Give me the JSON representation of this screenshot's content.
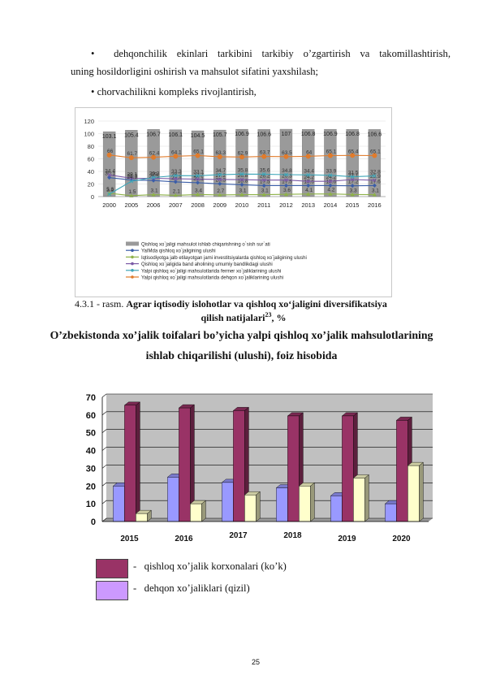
{
  "text": {
    "bullet1_line1": "dehqonchilik ekinlari tarkibini tarkibiy o’zgartirish va takomillashtirish,",
    "bullet1_line2": "uning hosildorligini oshirish va mahsulot sifatini yaxshilash;",
    "bullet2": "chorvachilikni kompleks rivojlantirish,",
    "bullet_glyph": "•",
    "fig1_caption_prefix": "4.3.1 - rasm.",
    "fig1_caption_bold": "Agrar iqtisodiy islohotlar va qishloq xo‘jaligini diversifikatsiya",
    "fig1_caption_line2": "qilish natijalari",
    "fig1_caption_sup": "23",
    "fig1_caption_suffix": ", %",
    "chart2_title_line1": "O’zbekistonda xo’jalik toifalari bo’yicha yalpi qishloq xo’jalik mahsulotlarining",
    "chart2_title_line2": "ishlab chiqarilishi (ulushi), foiz hisobida",
    "page_number": "25"
  },
  "chart_data": [
    {
      "type": "bar",
      "categories": [
        "2000",
        "2005",
        "2006",
        "2007",
        "2008",
        "2009",
        "2010",
        "2011",
        "2012",
        "2013",
        "2014",
        "2015",
        "2016"
      ],
      "ylim": [
        0,
        120
      ],
      "yticks": [
        0,
        20,
        40,
        60,
        80,
        100,
        120
      ],
      "bar_series": {
        "name": "Qishloq xo`jaligi mahsulot ishlab chiqarishning o`sish sur`ati",
        "values": [
          103.1,
          105.4,
          106.7,
          106.1,
          104.5,
          105.7,
          106.9,
          106.6,
          107,
          106.8,
          106.9,
          106.8,
          106.6
        ],
        "color": "#9a9a9a"
      },
      "line_series": [
        {
          "name": "YaIMda qishloq xo`jaligining ulushi",
          "color": "#3a5da8",
          "marker": "diamond",
          "values": [
            30.1,
            26.3,
            25.5,
            23.4,
            22.1,
            20.3,
            18.8,
            17.5,
            17.5,
            17.6,
            17.6,
            17.2,
            17.6
          ]
        },
        {
          "name": "Iqtisodiyotga jalb etilayotgan jami investitsiyalarda qishloq xo`jaligining ulushi",
          "color": "#8fb24a",
          "marker": "triangle",
          "values": [
            5.3,
            1.5,
            3.1,
            2.1,
            3.4,
            2.7,
            3.1,
            3.1,
            3.6,
            4.1,
            4.2,
            3.3,
            3.1
          ]
        },
        {
          "name": "Qishloq xo`jaligida band aholining umumiy bandlikdagi ulushi",
          "color": "#7b5aa6",
          "marker": "x",
          "values": [
            34.4,
            29.1,
            29,
            28.2,
            27.7,
            27.2,
            26.8,
            26.2,
            26.3,
            24.2,
            24.2,
            27.1,
            25.9
          ]
        },
        {
          "name": "Yalpi qishloq xo`jaligi mahsulotlarida fermer xo`jaliklarining ulushi",
          "color": "#3fa6b8",
          "marker": "x",
          "values": [
            3.9,
            24.3,
            30.3,
            33.3,
            33.1,
            34.7,
            35.8,
            35.6,
            34.8,
            34.4,
            33.9,
            31.5,
            32.8
          ]
        },
        {
          "name": "Yalpi qishloq xo`jaligi mahsulotlarida dehqon xo`jaliklarining ulushi",
          "color": "#e07b2c",
          "marker": "circle",
          "values": [
            66,
            61.7,
            62.4,
            64.1,
            65.1,
            63.3,
            62.9,
            63.7,
            63.5,
            64,
            65.1,
            65.4,
            65.1
          ]
        }
      ]
    },
    {
      "type": "bar",
      "title": "O’zbekistonda xo’jalik toifalari bo’yicha yalpi qishloq xo’jalik mahsulotlarining ishlab chiqarilishi (ulushi), foiz hisobida",
      "categories": [
        "2015",
        "2016",
        "2017",
        "2018",
        "2019",
        "2020"
      ],
      "ylim": [
        0,
        70
      ],
      "yticks": [
        0,
        10,
        20,
        30,
        40,
        50,
        60,
        70
      ],
      "series": [
        {
          "values": [
            20,
            25,
            22,
            19,
            14.5,
            10
          ],
          "color": "#9999ff"
        },
        {
          "name": "qishloq xo’jalik korxonalari (ko’k)",
          "values": [
            65.5,
            64,
            62.5,
            59.5,
            59.5,
            57
          ],
          "color": "#993366"
        },
        {
          "values": [
            4.5,
            10,
            15,
            20,
            24.5,
            31.5
          ],
          "color": "#ffffcc"
        }
      ],
      "legend": [
        {
          "label": "qishloq xo’jalik korxonalari (ko’k)",
          "dash": "-",
          "color": "#993366"
        },
        {
          "label": "dehqon xo’jaliklari (qizil)",
          "dash": "-",
          "color": "#cc99ff"
        }
      ]
    }
  ]
}
